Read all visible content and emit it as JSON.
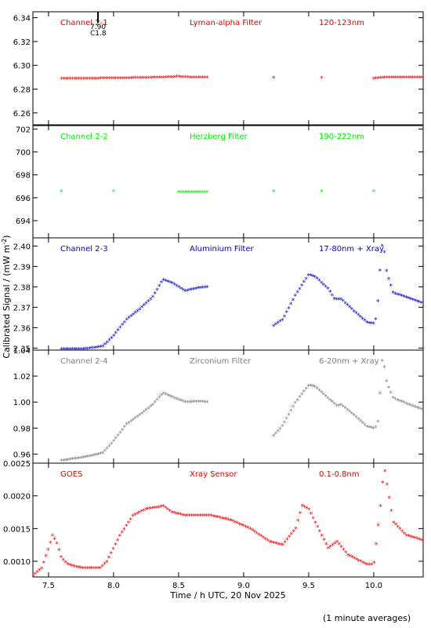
{
  "footnote": "(1 minute averages)",
  "chart_data": {
    "type": "scatter",
    "xlabel": "Time / h UTC, 20 Nov 2025",
    "ylabel": "Calibrated Signal / (mW m",
    "ylabel_sup": "-2",
    "ylabel_close": ")",
    "xlim": [
      7.38,
      10.38
    ],
    "xticks": [
      7.5,
      8.0,
      8.5,
      9.0,
      9.5,
      10.0
    ],
    "xtick_labels": [
      "7.5",
      "8.0",
      "8.5",
      "9.0",
      "9.5",
      "10.0"
    ],
    "panels": [
      {
        "channel": "Channel 2-1",
        "filter": "Lyman-alpha Filter",
        "band": "120-123nm",
        "color": "#ee0000",
        "ylim": [
          6.25,
          6.345
        ],
        "yticks": [
          6.26,
          6.28,
          6.3,
          6.32,
          6.34
        ],
        "ytick_labels": [
          "6.26",
          "6.28",
          "6.30",
          "6.32",
          "6.34"
        ],
        "annotation": [
          "7.90",
          "C1.8"
        ],
        "annotation_x": 7.88,
        "x": [
          7.6,
          7.8,
          8.0,
          8.2,
          8.4,
          8.5,
          8.6,
          8.73,
          9.23,
          9.6,
          10.0,
          10.1,
          10.2,
          10.38
        ],
        "y": [
          6.289,
          6.289,
          6.2892,
          6.2895,
          6.29,
          6.2905,
          6.29,
          6.29,
          6.289,
          6.289,
          6.289,
          6.29,
          6.29,
          6.29
        ]
      },
      {
        "channel": "Channel 2-2",
        "filter": "Herzberg Filter",
        "band": "190-222nm",
        "color": "#00ee00",
        "ylim": [
          692.5,
          702.3
        ],
        "yticks": [
          694,
          696,
          698,
          700,
          702
        ],
        "ytick_labels": [
          "694",
          "696",
          "698",
          "700",
          "702"
        ],
        "x": [
          7.6,
          8.0,
          8.5,
          8.73,
          9.23,
          9.6,
          10.0,
          10.38
        ],
        "y": [
          696.5,
          696.5,
          696.5,
          696.5,
          696.5,
          696.5,
          696.5,
          696.5
        ]
      },
      {
        "channel": "Channel 2-3",
        "filter": "Aluminium Filter",
        "band": "17-80nm + Xray",
        "color": "#0000cc",
        "ylim": [
          2.349,
          2.404
        ],
        "yticks": [
          2.35,
          2.36,
          2.37,
          2.38,
          2.39,
          2.4
        ],
        "ytick_labels": [
          "2.35",
          "2.36",
          "2.37",
          "2.38",
          "2.39",
          "2.40"
        ],
        "x": [
          7.6,
          7.8,
          7.92,
          8.0,
          8.1,
          8.2,
          8.3,
          8.38,
          8.45,
          8.55,
          8.65,
          8.73,
          9.23,
          9.3,
          9.4,
          9.5,
          9.55,
          9.65,
          9.7,
          9.75,
          9.85,
          9.95,
          10.0,
          10.02,
          10.04,
          10.06,
          10.08,
          10.1,
          10.15,
          10.25,
          10.38
        ],
        "y": [
          2.3495,
          2.3497,
          2.351,
          2.356,
          2.364,
          2.369,
          2.375,
          2.3835,
          2.382,
          2.378,
          2.3795,
          2.38,
          2.361,
          2.364,
          2.376,
          2.386,
          2.385,
          2.379,
          2.374,
          2.374,
          2.368,
          2.3625,
          2.362,
          2.365,
          2.379,
          2.401,
          2.398,
          2.387,
          2.377,
          2.375,
          2.372
        ]
      },
      {
        "channel": "Channel 2-4",
        "filter": "Zirconium Filter",
        "band": "6-20nm + Xray",
        "color": "#808080",
        "ylim": [
          0.953,
          1.04
        ],
        "yticks": [
          0.96,
          0.98,
          1.0,
          1.02,
          1.04
        ],
        "ytick_labels": [
          "0.96",
          "0.98",
          "1.00",
          "1.02",
          "1.04"
        ],
        "x": [
          7.6,
          7.8,
          7.92,
          8.0,
          8.1,
          8.2,
          8.3,
          8.38,
          8.45,
          8.55,
          8.65,
          8.73,
          9.23,
          9.3,
          9.4,
          9.5,
          9.55,
          9.65,
          9.72,
          9.75,
          9.85,
          9.95,
          10.0,
          10.02,
          10.04,
          10.06,
          10.08,
          10.1,
          10.15,
          10.25,
          10.38
        ],
        "y": [
          0.955,
          0.958,
          0.961,
          0.97,
          0.983,
          0.99,
          0.998,
          1.007,
          1.004,
          1.0,
          1.0005,
          1.0,
          0.974,
          0.982,
          1.0,
          1.013,
          1.012,
          1.003,
          0.997,
          0.998,
          0.99,
          0.981,
          0.98,
          0.981,
          0.988,
          1.033,
          1.028,
          1.015,
          1.003,
          0.999,
          0.994
        ]
      },
      {
        "channel": "GOES",
        "filter": "Xray Sensor",
        "band": "0.1-0.8nm",
        "color": "#ee0000",
        "ylim": [
          0.00076,
          0.0025
        ],
        "yticks": [
          0.001,
          0.0015,
          0.002,
          0.0025
        ],
        "ytick_labels": [
          "0.0010",
          "0.0015",
          "0.0020",
          "0.0025"
        ],
        "x": [
          7.38,
          7.45,
          7.5,
          7.53,
          7.56,
          7.6,
          7.65,
          7.75,
          7.9,
          7.95,
          8.05,
          8.15,
          8.25,
          8.35,
          8.38,
          8.45,
          8.55,
          8.75,
          8.9,
          9.05,
          9.2,
          9.3,
          9.4,
          9.45,
          9.5,
          9.55,
          9.65,
          9.72,
          9.8,
          9.95,
          10.0,
          10.05,
          10.08,
          10.1,
          10.15,
          10.25,
          10.38
        ],
        "y": [
          0.00078,
          0.0009,
          0.0012,
          0.0014,
          0.0013,
          0.00105,
          0.00095,
          0.0009,
          0.0009,
          0.001,
          0.0014,
          0.0017,
          0.0018,
          0.00183,
          0.00185,
          0.00175,
          0.0017,
          0.0017,
          0.00163,
          0.0015,
          0.0013,
          0.00125,
          0.0015,
          0.00185,
          0.0018,
          0.0016,
          0.0012,
          0.0013,
          0.0011,
          0.00095,
          0.00095,
          0.0018,
          0.00245,
          0.0022,
          0.0016,
          0.0014,
          0.00132
        ]
      }
    ]
  }
}
